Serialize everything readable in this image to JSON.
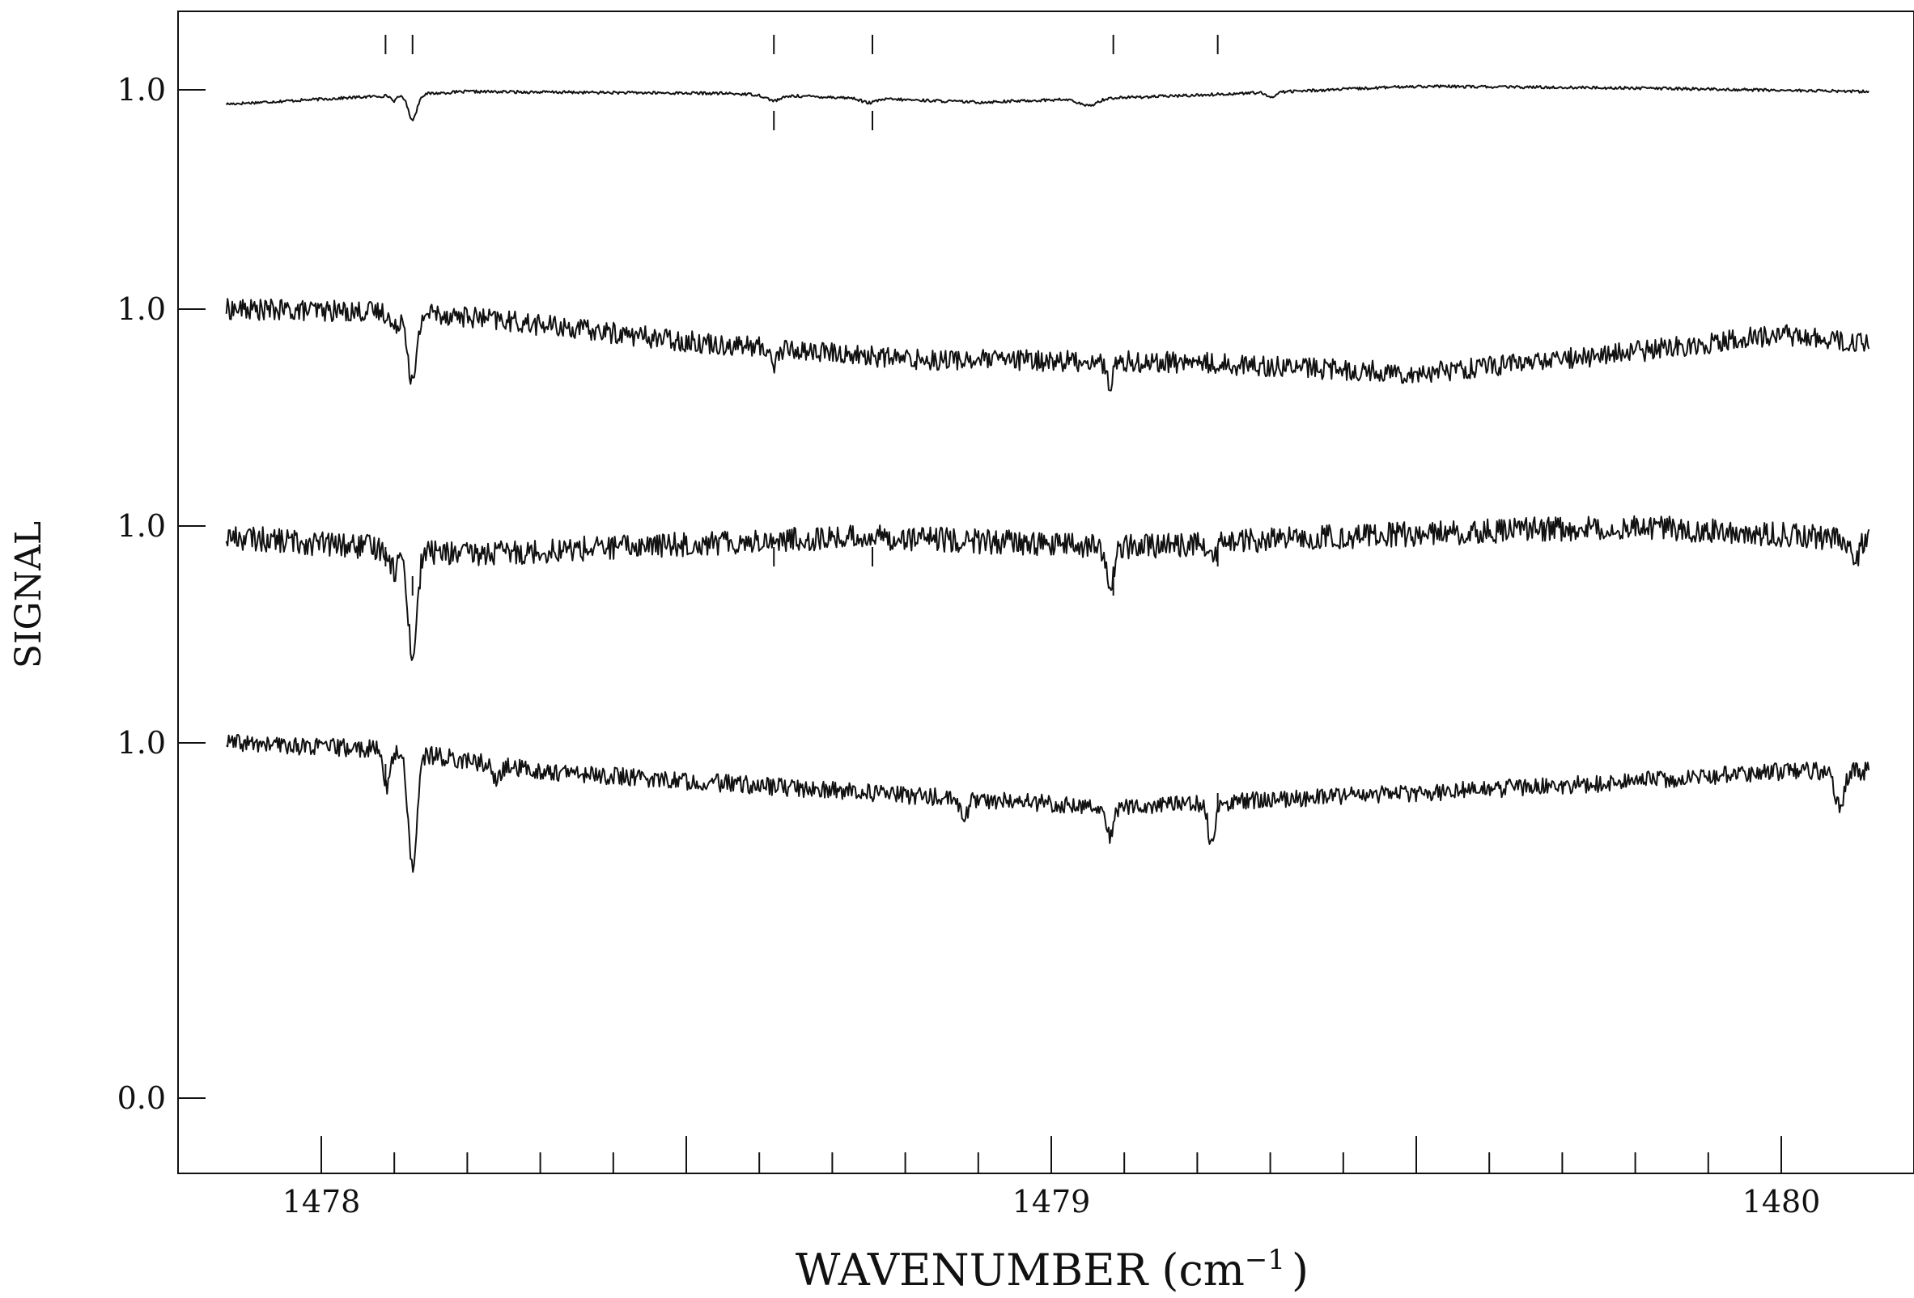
{
  "chart_data": {
    "type": "line",
    "title": "",
    "xlabel": "WAVENUMBER (cm",
    "xlabel_sup": "−1",
    "xlabel_close": ")",
    "ylabel": "SIGNAL",
    "xlim": [
      1477.8,
      1480.18
    ],
    "grid": false,
    "legend": "none",
    "x_tick_labels": [
      "1478",
      "1479",
      "1480"
    ],
    "x_major_ticks": [
      1478,
      1478.5,
      1479,
      1479.5,
      1480
    ],
    "x_minor_ticks": [
      1478.1,
      1478.2,
      1478.3,
      1478.4,
      1478.6,
      1478.7,
      1478.8,
      1478.9,
      1479.1,
      1479.2,
      1479.3,
      1479.4,
      1479.6,
      1479.7,
      1479.8,
      1479.9
    ],
    "y_tick_labels": [
      "1.0",
      "1.0",
      "1.0",
      "1.0",
      "0.0"
    ],
    "y_zero_label": "0.0",
    "line_color": "#111111",
    "series": [
      {
        "offset": 3,
        "noise": 0.004,
        "x_start": 1477.87,
        "x_end": 1480.12,
        "baseline": [
          [
            1477.87,
            0.96
          ],
          [
            1478.2,
            0.995
          ],
          [
            1478.55,
            0.99
          ],
          [
            1478.9,
            0.965
          ],
          [
            1479.2,
            0.985
          ],
          [
            1479.5,
            1.01
          ],
          [
            1479.8,
            1.005
          ],
          [
            1480.12,
            0.995
          ]
        ],
        "dips": [
          [
            1478.125,
            0.07,
            0.006
          ],
          [
            1478.1,
            0.015,
            0.004
          ],
          [
            1478.62,
            0.015,
            0.01
          ],
          [
            1478.75,
            0.012,
            0.01
          ],
          [
            1479.05,
            0.02,
            0.012
          ],
          [
            1479.3,
            0.015,
            0.006
          ]
        ]
      },
      {
        "offset": 2,
        "noise": 0.03,
        "x_start": 1477.87,
        "x_end": 1480.12,
        "baseline": [
          [
            1477.87,
            1.0
          ],
          [
            1478.15,
            0.99
          ],
          [
            1478.5,
            0.91
          ],
          [
            1478.8,
            0.86
          ],
          [
            1479.2,
            0.85
          ],
          [
            1479.5,
            0.82
          ],
          [
            1479.8,
            0.88
          ],
          [
            1480.0,
            0.93
          ],
          [
            1480.12,
            0.9
          ]
        ],
        "dips": [
          [
            1478.125,
            0.2,
            0.006
          ],
          [
            1478.1,
            0.05,
            0.005
          ],
          [
            1478.62,
            0.04,
            0.005
          ],
          [
            1479.08,
            0.06,
            0.005
          ]
        ]
      },
      {
        "offset": 1,
        "noise": 0.035,
        "x_start": 1477.87,
        "x_end": 1480.12,
        "baseline": [
          [
            1477.87,
            0.97
          ],
          [
            1478.2,
            0.92
          ],
          [
            1478.5,
            0.95
          ],
          [
            1478.75,
            0.97
          ],
          [
            1479.1,
            0.94
          ],
          [
            1479.4,
            0.97
          ],
          [
            1479.8,
            1.0
          ],
          [
            1480.12,
            0.96
          ]
        ],
        "dips": [
          [
            1478.125,
            0.3,
            0.006
          ],
          [
            1478.1,
            0.06,
            0.005
          ],
          [
            1479.08,
            0.12,
            0.005
          ],
          [
            1479.22,
            0.05,
            0.005
          ],
          [
            1480.1,
            0.08,
            0.005
          ]
        ]
      },
      {
        "offset": 0,
        "noise": 0.025,
        "x_start": 1477.87,
        "x_end": 1480.12,
        "baseline": [
          [
            1477.87,
            1.0
          ],
          [
            1478.1,
            0.98
          ],
          [
            1478.3,
            0.92
          ],
          [
            1478.6,
            0.88
          ],
          [
            1478.9,
            0.84
          ],
          [
            1479.1,
            0.82
          ],
          [
            1479.4,
            0.85
          ],
          [
            1479.7,
            0.88
          ],
          [
            1480.0,
            0.92
          ],
          [
            1480.12,
            0.92
          ]
        ],
        "dips": [
          [
            1478.125,
            0.32,
            0.006
          ],
          [
            1478.09,
            0.1,
            0.005
          ],
          [
            1478.24,
            0.05,
            0.005
          ],
          [
            1478.88,
            0.06,
            0.005
          ],
          [
            1479.08,
            0.08,
            0.005
          ],
          [
            1479.22,
            0.12,
            0.005
          ],
          [
            1480.08,
            0.1,
            0.006
          ]
        ]
      }
    ],
    "markers": [
      {
        "x": 1478.088,
        "series_offset": 3,
        "side": "above"
      },
      {
        "x": 1478.125,
        "series_offset": 3,
        "side": "above"
      },
      {
        "x": 1478.62,
        "series_offset": 3,
        "side": "above"
      },
      {
        "x": 1478.755,
        "series_offset": 3,
        "side": "above"
      },
      {
        "x": 1479.085,
        "series_offset": 3,
        "side": "above"
      },
      {
        "x": 1479.228,
        "series_offset": 3,
        "side": "above"
      },
      {
        "x": 1478.62,
        "series_offset": 3,
        "side": "below"
      },
      {
        "x": 1478.755,
        "series_offset": 3,
        "side": "below"
      },
      {
        "x": 1478.088,
        "series_offset": 1,
        "side": "below"
      },
      {
        "x": 1478.125,
        "series_offset": 1,
        "side": "below-far"
      },
      {
        "x": 1478.62,
        "series_offset": 1,
        "side": "below"
      },
      {
        "x": 1478.755,
        "series_offset": 1,
        "side": "below"
      },
      {
        "x": 1479.085,
        "series_offset": 1,
        "side": "below-far"
      },
      {
        "x": 1479.228,
        "series_offset": 1,
        "side": "below"
      },
      {
        "x": 1478.088,
        "series_offset": 0,
        "side": "below"
      },
      {
        "x": 1479.228,
        "series_offset": 0,
        "side": "below-far"
      }
    ]
  }
}
